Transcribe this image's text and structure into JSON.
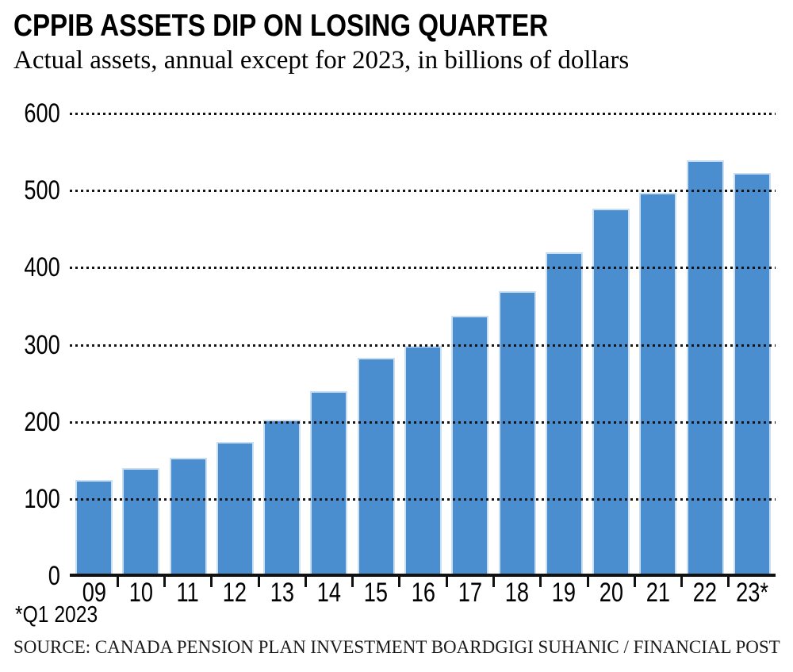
{
  "header": {
    "title": "CPPIB ASSETS DIP ON LOSING QUARTER",
    "subtitle": "Actual assets, annual except for 2023, in billions of dollars"
  },
  "footnote": "*Q1 2023",
  "source": {
    "left": "SOURCE: CANADA PENSION PLAN INVESTMENT BOARD",
    "right": "GIGI SUHANIC / FINANCIAL POST"
  },
  "colors": {
    "bar_fill": "#4a8ecf",
    "bar_edge": "#cbdff2",
    "grid_dots": "#141414",
    "axis": "#111111",
    "text": "#000000"
  },
  "chart_data": {
    "type": "bar",
    "title": "CPPIB ASSETS DIP ON LOSING QUARTER",
    "subtitle": "Actual assets, annual except for 2023, in billions of dollars",
    "unit": "billions of dollars",
    "categories": [
      "09",
      "10",
      "11",
      "12",
      "13",
      "14",
      "15",
      "16",
      "17",
      "18",
      "19",
      "20",
      "21",
      "22",
      "23*"
    ],
    "values": [
      125,
      140,
      153,
      174,
      203,
      240,
      283,
      298,
      338,
      369,
      420,
      476,
      497,
      539,
      523
    ],
    "ylim": [
      0,
      600
    ],
    "yticks": [
      0,
      100,
      200,
      300,
      400,
      500,
      600
    ],
    "grid": "horizontal-dotted",
    "legend": "none",
    "footnote": "*Q1 2023"
  }
}
